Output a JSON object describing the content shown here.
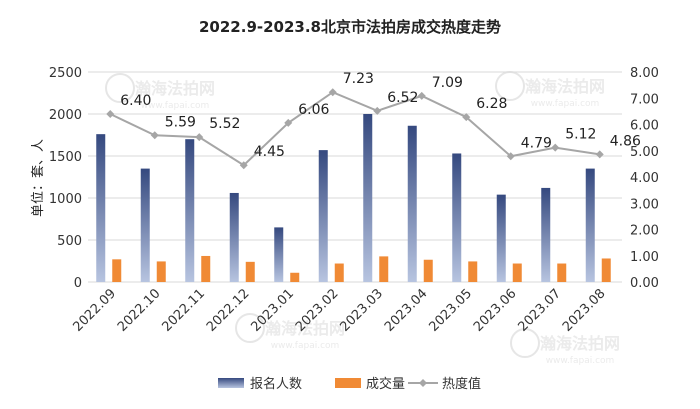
{
  "chart_data": {
    "type": "bar+line",
    "title": "2022.9-2023.8北京市法拍房成交热度走势",
    "ylabel_left": "单位：套、人",
    "categories": [
      "2022.09",
      "2022.10",
      "2022.11",
      "2022.12",
      "2023.01",
      "2023.02",
      "2023.03",
      "2023.04",
      "2023.05",
      "2023.06",
      "2023.07",
      "2023.08"
    ],
    "series": [
      {
        "name": "报名人数",
        "type": "bar",
        "axis": "left",
        "color": "#4a5f97",
        "values": [
          1760,
          1350,
          1700,
          1060,
          650,
          1570,
          2000,
          1860,
          1530,
          1040,
          1120,
          1350
        ]
      },
      {
        "name": "成交量",
        "type": "bar",
        "axis": "left",
        "color": "#f08a35",
        "values": [
          270,
          245,
          310,
          240,
          110,
          220,
          305,
          265,
          245,
          220,
          220,
          280
        ]
      },
      {
        "name": "热度值",
        "type": "line",
        "axis": "right",
        "color": "#a6a6a6",
        "values": [
          6.4,
          5.59,
          5.52,
          4.45,
          6.06,
          7.23,
          6.52,
          7.09,
          6.28,
          4.79,
          5.12,
          4.86
        ],
        "labels": [
          "6.40",
          "5.59",
          "5.52",
          "4.45",
          "6.06",
          "7.23",
          "6.52",
          "7.09",
          "6.28",
          "4.79",
          "5.12",
          "4.86"
        ]
      }
    ],
    "y_left": {
      "min": 0,
      "max": 2500,
      "ticks": [
        "0",
        "500",
        "1000",
        "1500",
        "2000",
        "2500"
      ]
    },
    "y_right": {
      "min": 0,
      "max": 8,
      "ticks": [
        "0.00",
        "1.00",
        "2.00",
        "3.00",
        "4.00",
        "5.00",
        "6.00",
        "7.00",
        "8.00"
      ]
    },
    "grid": true,
    "legend_position": "bottom"
  },
  "watermark": {
    "text": "瀚海法拍网",
    "url": "www.fapai.com"
  }
}
